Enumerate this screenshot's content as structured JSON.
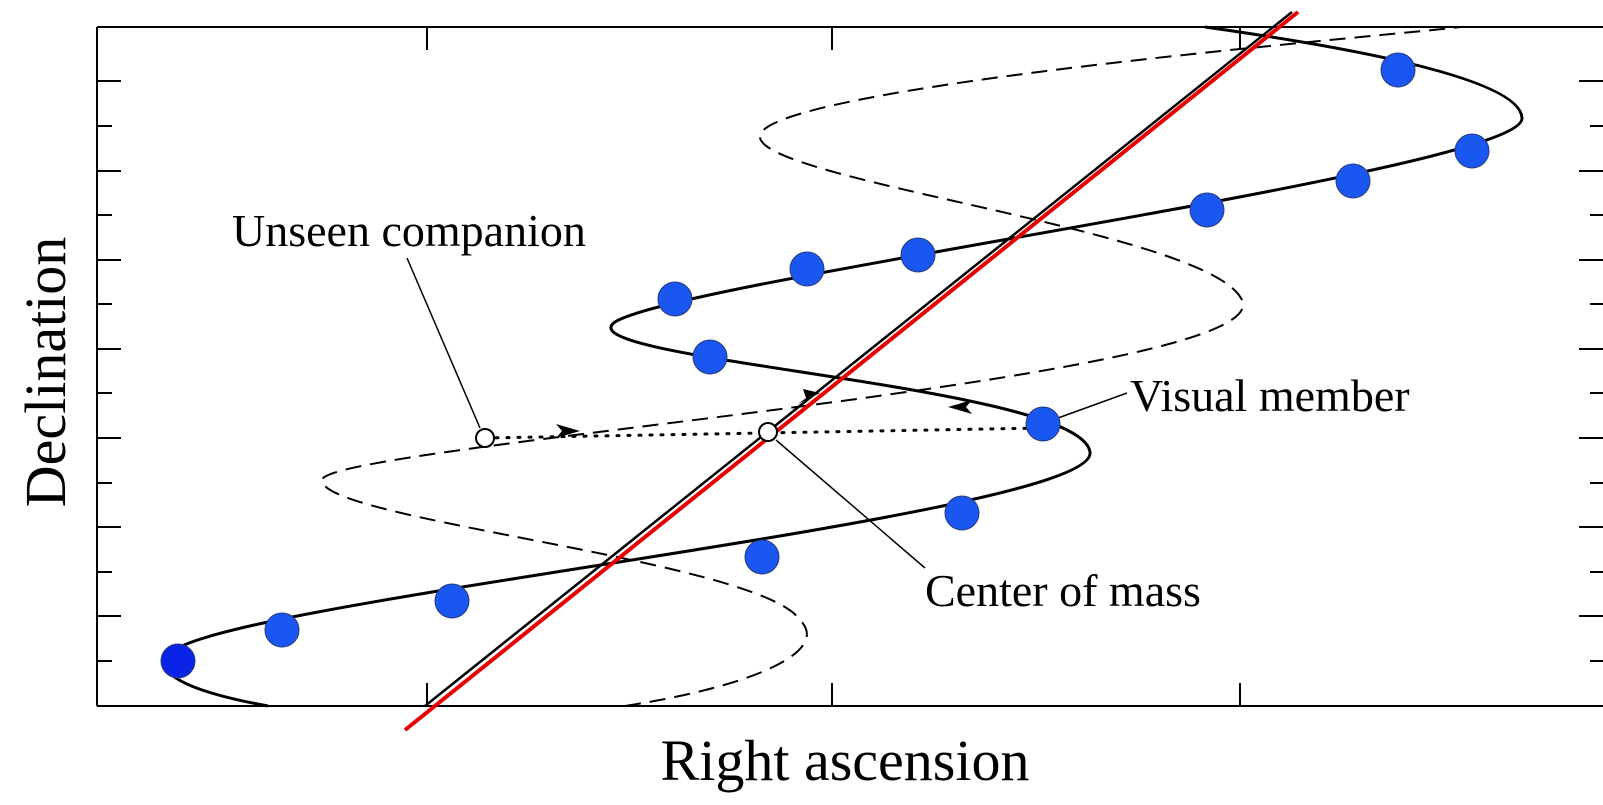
{
  "figure": {
    "x_axis_label": "Right ascension",
    "y_axis_label": "Declination",
    "annotations": {
      "unseen_companion": "Unseen companion",
      "visual_member": "Visual member",
      "center_of_mass": "Center of mass"
    }
  },
  "colors": {
    "background": "#ffffff",
    "axes": "#000000",
    "visible_star_path": "#000000",
    "companion_path": "#000000",
    "center_of_mass_path": "#000000",
    "overlay_line": "#e60000",
    "observed_points": "#1a56f0",
    "first_observed_point": "#0a24e6"
  }
}
